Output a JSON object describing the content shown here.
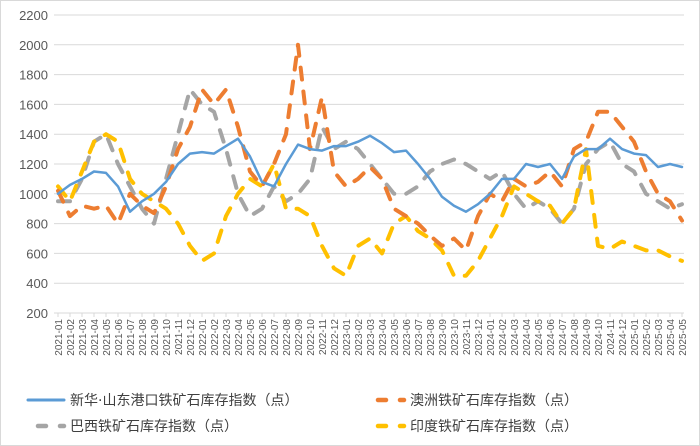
{
  "chart_data": {
    "type": "line",
    "title": "",
    "xlabel": "",
    "ylabel": "",
    "ylim": [
      200,
      2200
    ],
    "yticks": [
      200,
      400,
      600,
      800,
      1000,
      1200,
      1400,
      1600,
      1800,
      2000,
      2200
    ],
    "grid": true,
    "legend_placement": "bottom",
    "x": [
      "2021-01",
      "2021-02",
      "2021-03",
      "2021-04",
      "2021-05",
      "2021-06",
      "2021-07",
      "2021-08",
      "2021-09",
      "2021-10",
      "2021-11",
      "2021-12",
      "2022-01",
      "2022-02",
      "2022-03",
      "2022-04",
      "2022-05",
      "2022-06",
      "2022-07",
      "2022-08",
      "2022-09",
      "2022-10",
      "2022-11",
      "2022-12",
      "2023-01",
      "2023-02",
      "2023-03",
      "2023-04",
      "2023-05",
      "2023-06",
      "2023-07",
      "2023-08",
      "2023-09",
      "2023-10",
      "2023-11",
      "2023-12",
      "2024-01",
      "2024-02",
      "2024-03",
      "2024-04",
      "2024-05",
      "2024-06",
      "2024-07",
      "2024-08",
      "2024-09",
      "2024-10",
      "2024-11",
      "2024-12",
      "2025-01",
      "2025-02",
      "2025-03",
      "2025-04",
      "2025-05"
    ],
    "series": [
      {
        "name": "新华·山东港口铁矿石库存指数（点）",
        "color": "#5b9bd5",
        "style": "solid",
        "values": [
          1000,
          1060,
          1100,
          1150,
          1140,
          1050,
          880,
          950,
          1000,
          1080,
          1200,
          1270,
          1280,
          1270,
          1320,
          1370,
          1250,
          1080,
          1050,
          1200,
          1330,
          1300,
          1290,
          1320,
          1320,
          1350,
          1390,
          1340,
          1280,
          1290,
          1200,
          1100,
          980,
          920,
          880,
          930,
          1000,
          1100,
          1100,
          1200,
          1180,
          1200,
          1100,
          1250,
          1300,
          1300,
          1370,
          1300,
          1270,
          1260,
          1180,
          1200,
          1180
        ]
      },
      {
        "name": "澳洲铁矿石库存指数（点）",
        "color": "#ed7d31",
        "style": "dashed",
        "values": [
          1020,
          850,
          920,
          900,
          920,
          800,
          1000,
          920,
          870,
          1050,
          1300,
          1450,
          1700,
          1600,
          1700,
          1450,
          1150,
          1050,
          1200,
          1400,
          2000,
          1300,
          1650,
          1150,
          1050,
          1100,
          1180,
          1100,
          900,
          850,
          800,
          720,
          650,
          700,
          620,
          850,
          1000,
          950,
          1100,
          1050,
          1080,
          1150,
          1050,
          1300,
          1350,
          1550,
          1550,
          1450,
          1350,
          1150,
          1000,
          950,
          820
        ]
      },
      {
        "name": "巴西铁矿石库存指数（点）",
        "color": "#a5a5a5",
        "style": "dashed",
        "values": [
          950,
          950,
          1100,
          1350,
          1400,
          1200,
          1050,
          900,
          800,
          1100,
          1400,
          1700,
          1600,
          1550,
          1300,
          1000,
          850,
          900,
          1050,
          950,
          1000,
          1100,
          1450,
          1300,
          1350,
          1300,
          1200,
          1100,
          1000,
          1000,
          1050,
          1150,
          1200,
          1230,
          1200,
          1150,
          1100,
          1150,
          1000,
          900,
          950,
          900,
          800,
          900,
          1200,
          1300,
          1350,
          1200,
          1150,
          1000,
          950,
          900,
          930
        ]
      },
      {
        "name": "印度铁矿石库存指数（点）",
        "color": "#ffc000",
        "style": "dashed",
        "values": [
          1050,
          950,
          1150,
          1350,
          1400,
          1350,
          1100,
          1000,
          950,
          900,
          800,
          650,
          550,
          600,
          850,
          1000,
          1100,
          1050,
          1200,
          900,
          900,
          850,
          650,
          500,
          450,
          650,
          700,
          600,
          800,
          850,
          750,
          700,
          620,
          450,
          450,
          550,
          700,
          850,
          1050,
          1000,
          950,
          920,
          800,
          900,
          1300,
          650,
          630,
          680,
          650,
          620,
          620,
          580,
          550
        ]
      }
    ]
  }
}
